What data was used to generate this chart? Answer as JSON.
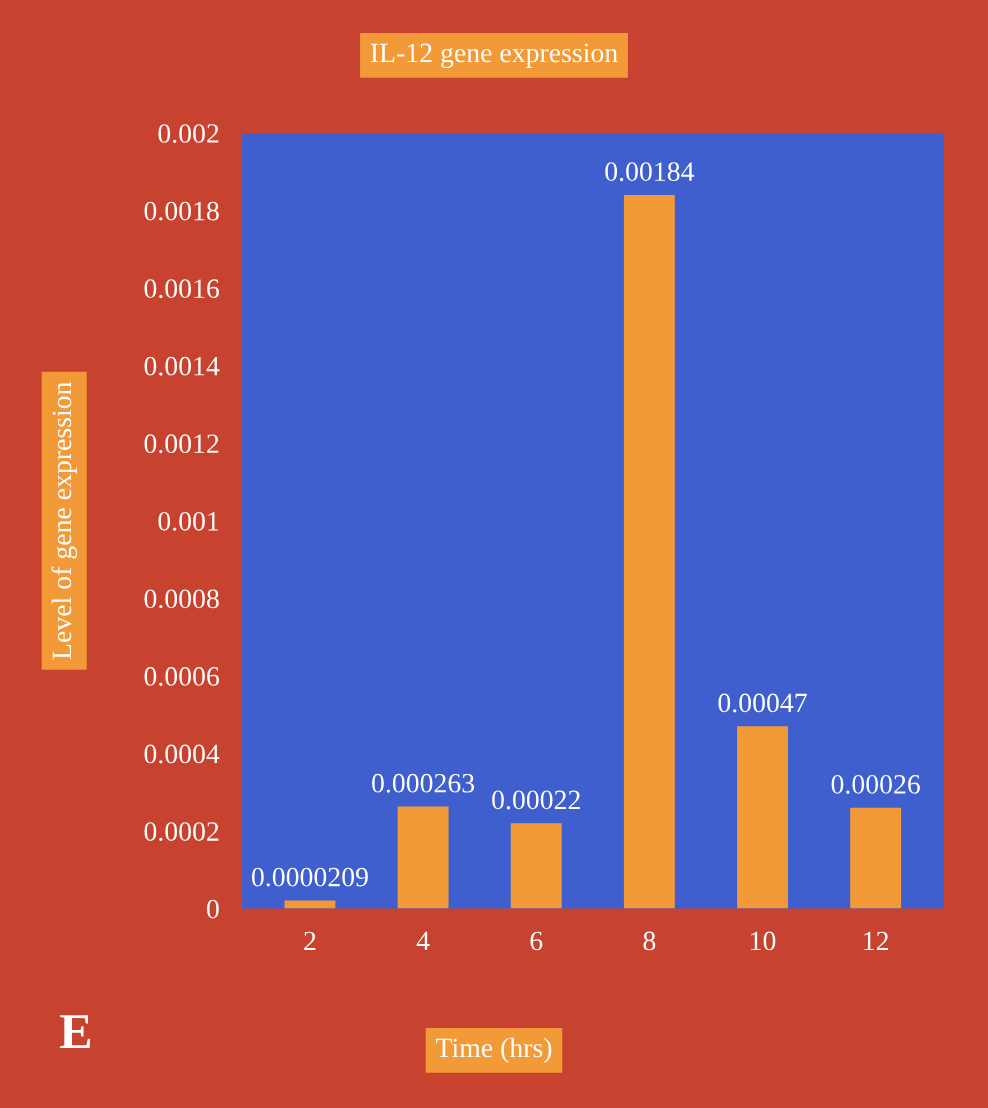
{
  "chart_data": {
    "type": "bar",
    "title": "IL-12 gene expression",
    "xlabel": "Time (hrs)",
    "ylabel": "Level of gene expression",
    "categories": [
      "2",
      "4",
      "6",
      "8",
      "10",
      "12"
    ],
    "values": [
      2.09e-05,
      0.000263,
      0.00022,
      0.00184,
      0.00047,
      0.00026
    ],
    "value_labels": [
      "0.0000209",
      "0.000263",
      "0.00022",
      "0.00184",
      "0.00047",
      "0.00026"
    ],
    "color": "#f39a38",
    "ylim": [
      0,
      0.002
    ],
    "yticks": [
      0,
      0.0002,
      0.0004,
      0.0006,
      0.0008,
      0.001,
      0.0012,
      0.0014,
      0.0016,
      0.0018,
      0.002
    ],
    "grid": false,
    "annotations": [
      "E"
    ]
  }
}
